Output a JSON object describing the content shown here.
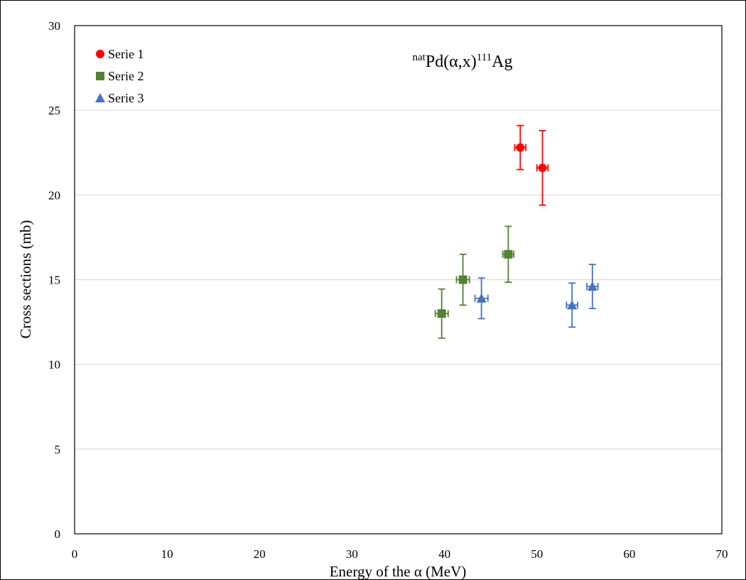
{
  "chart_data": {
    "type": "scatter",
    "title_parts": {
      "sup1": "nat",
      "main1": "Pd(α,x)",
      "sup2": "111",
      "main2": "Ag"
    },
    "xlabel": "Energy of the α (MeV)",
    "ylabel": "Cross sections (mb)",
    "xlim": [
      0,
      70
    ],
    "ylim": [
      0,
      30
    ],
    "xticks": [
      "0",
      "10",
      "20",
      "30",
      "40",
      "50",
      "60",
      "70"
    ],
    "yticks": [
      "0",
      "5",
      "10",
      "15",
      "20",
      "25",
      "30"
    ],
    "grid": "horizontal",
    "legend_position": "top-left",
    "series": [
      {
        "name": "Serie 1",
        "marker": "circle",
        "color": "#ff0000",
        "points": [
          {
            "x": 48.2,
            "y": 22.8,
            "xerr": 0.6,
            "yerr_low": 1.3,
            "yerr_high": 1.3
          },
          {
            "x": 50.6,
            "y": 21.6,
            "xerr": 0.6,
            "yerr_low": 2.2,
            "yerr_high": 2.2
          }
        ]
      },
      {
        "name": "Serie 2",
        "marker": "square",
        "color": "#548235",
        "points": [
          {
            "x": 39.7,
            "y": 13.0,
            "xerr": 0.7,
            "yerr_low": 1.45,
            "yerr_high": 1.45
          },
          {
            "x": 42.0,
            "y": 15.0,
            "xerr": 0.7,
            "yerr_low": 1.5,
            "yerr_high": 1.5
          },
          {
            "x": 46.9,
            "y": 16.5,
            "xerr": 0.6,
            "yerr_low": 1.65,
            "yerr_high": 1.65
          }
        ]
      },
      {
        "name": "Serie 3",
        "marker": "triangle",
        "color": "#4472c4",
        "points": [
          {
            "x": 44.0,
            "y": 13.9,
            "xerr": 0.7,
            "yerr_low": 1.2,
            "yerr_high": 1.2
          },
          {
            "x": 53.8,
            "y": 13.5,
            "xerr": 0.6,
            "yerr_low": 1.3,
            "yerr_high": 1.3
          },
          {
            "x": 56.0,
            "y": 14.6,
            "xerr": 0.6,
            "yerr_low": 1.3,
            "yerr_high": 1.3
          }
        ]
      }
    ]
  }
}
